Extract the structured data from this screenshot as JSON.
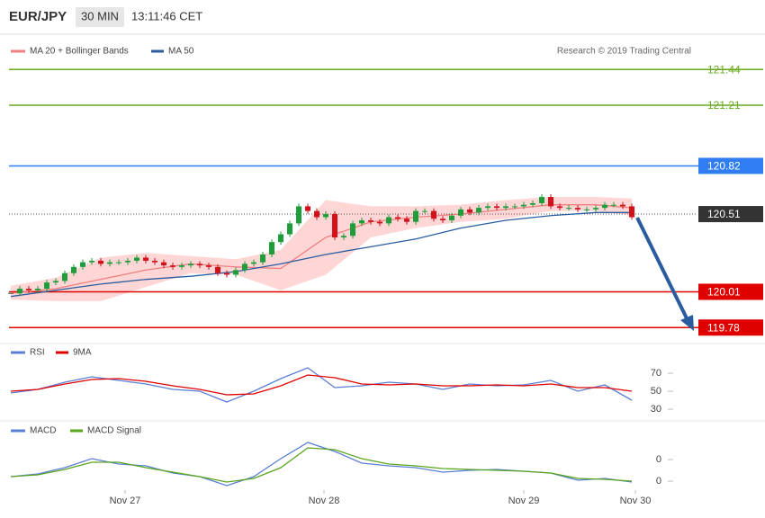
{
  "header": {
    "pair": "EUR/JPY",
    "interval": "30 MIN",
    "time": "13:11:46 CET"
  },
  "credit": "Research © 2019 Trading Central",
  "chart_data": [
    {
      "type": "candlestick",
      "xlim": [
        -0.2,
        76.3
      ],
      "ylim": [
        119.66,
        121.54
      ],
      "up_color": "#1e9e3a",
      "down_color": "#d4101a",
      "close": [
        120.0,
        120.03,
        120.02,
        120.03,
        120.07,
        120.08,
        120.13,
        120.17,
        120.2,
        120.21,
        120.19,
        120.2,
        120.2,
        120.21,
        120.23,
        120.21,
        120.2,
        120.18,
        120.17,
        120.18,
        120.19,
        120.18,
        120.17,
        120.13,
        120.12,
        120.15,
        120.19,
        120.2,
        120.25,
        120.33,
        120.38,
        120.45,
        120.56,
        120.53,
        120.49,
        120.51,
        120.36,
        120.37,
        120.45,
        120.47,
        120.46,
        120.45,
        120.49,
        120.48,
        120.46,
        120.53,
        120.53,
        120.48,
        120.47,
        120.5,
        120.54,
        120.52,
        120.55,
        120.56,
        120.55,
        120.56,
        120.56,
        120.57,
        120.58,
        120.62,
        120.56,
        120.55,
        120.55,
        120.54,
        120.54,
        120.55,
        120.57,
        120.57,
        120.56,
        120.49
      ],
      "series": [
        {
          "name": "MA 20 + Bollinger Bands",
          "color": "#f08080",
          "band_color": "#ffd6d6",
          "x": [
            0,
            5,
            10,
            15,
            20,
            25,
            30,
            35,
            40,
            45,
            50,
            55,
            60,
            65,
            69
          ],
          "values": [
            120.0,
            120.03,
            120.09,
            120.15,
            120.19,
            120.17,
            120.16,
            120.36,
            120.46,
            120.49,
            120.51,
            120.54,
            120.57,
            120.57,
            120.55
          ],
          "upper": [
            120.05,
            120.1,
            120.23,
            120.26,
            120.24,
            120.22,
            120.28,
            120.6,
            120.56,
            120.56,
            120.57,
            120.6,
            120.62,
            120.62,
            120.61
          ],
          "lower": [
            119.96,
            119.95,
            119.95,
            120.04,
            120.13,
            120.12,
            120.02,
            120.12,
            120.36,
            120.42,
            120.46,
            120.48,
            120.53,
            120.53,
            120.5
          ]
        },
        {
          "name": "MA 50",
          "color": "#2a5d9f",
          "x": [
            0,
            5,
            10,
            15,
            20,
            25,
            30,
            35,
            40,
            45,
            50,
            55,
            60,
            65,
            69
          ],
          "values": [
            119.98,
            120.02,
            120.06,
            120.09,
            120.11,
            120.14,
            120.19,
            120.25,
            120.3,
            120.35,
            120.42,
            120.47,
            120.5,
            120.52,
            120.52
          ]
        }
      ],
      "levels": [
        {
          "value": 121.44,
          "color": "#6aa820",
          "style": "plain"
        },
        {
          "value": 121.21,
          "color": "#6aa820",
          "style": "plain"
        },
        {
          "value": 120.82,
          "color": "#2f7df0",
          "style": "box"
        },
        {
          "value": 120.51,
          "color": "#333333",
          "style": "dotted-box"
        },
        {
          "value": 120.01,
          "color": "#e00000",
          "style": "box"
        },
        {
          "value": 119.78,
          "color": "#e00000",
          "style": "box"
        }
      ]
    },
    {
      "type": "line",
      "xlim": [
        -0.2,
        76.3
      ],
      "ylim": [
        15,
        85
      ],
      "yticks": [
        70,
        50,
        30
      ],
      "series": [
        {
          "name": "RSI",
          "color": "#5b7fd6",
          "x": [
            0,
            3,
            6,
            9,
            12,
            15,
            18,
            21,
            24,
            27,
            30,
            33,
            36,
            39,
            42,
            45,
            48,
            51,
            54,
            57,
            60,
            63,
            66,
            69
          ],
          "values": [
            48,
            52,
            60,
            66,
            62,
            58,
            52,
            50,
            38,
            50,
            64,
            76,
            54,
            56,
            60,
            58,
            52,
            58,
            56,
            57,
            62,
            50,
            57,
            40
          ]
        },
        {
          "name": "9MA",
          "color": "#e00000",
          "x": [
            0,
            3,
            6,
            9,
            12,
            15,
            18,
            21,
            24,
            27,
            30,
            33,
            36,
            39,
            42,
            45,
            48,
            51,
            54,
            57,
            60,
            63,
            66,
            69
          ],
          "values": [
            50,
            52,
            58,
            63,
            64,
            61,
            56,
            52,
            46,
            47,
            56,
            68,
            65,
            58,
            57,
            58,
            56,
            56,
            57,
            56,
            58,
            54,
            54,
            50
          ]
        }
      ]
    },
    {
      "type": "line",
      "xlim": [
        -0.2,
        76.3
      ],
      "ylim": [
        -0.35,
        0.6
      ],
      "yticks": [
        0
      ],
      "y2lim": [
        -0.59,
        0.36
      ],
      "y2ticks": [
        0
      ],
      "xticks": [
        {
          "value": 12.7,
          "label": "Nov 27"
        },
        {
          "value": 34.8,
          "label": "Nov 28"
        },
        {
          "value": 57,
          "label": "Nov 29"
        },
        {
          "value": 69.4,
          "label": "Nov 30"
        }
      ],
      "series": [
        {
          "name": "MACD",
          "color": "#5b7fd6",
          "x": [
            0,
            3,
            6,
            9,
            12,
            15,
            18,
            21,
            24,
            27,
            30,
            33,
            36,
            39,
            42,
            45,
            48,
            51,
            54,
            57,
            60,
            63,
            66,
            69
          ],
          "values": [
            0.05,
            0.08,
            0.15,
            0.25,
            0.19,
            0.17,
            0.09,
            0.05,
            -0.05,
            0.05,
            0.25,
            0.43,
            0.33,
            0.2,
            0.17,
            0.15,
            0.1,
            0.12,
            0.13,
            0.11,
            0.09,
            0.01,
            0.03,
            -0.01
          ]
        },
        {
          "name": "MACD Signal",
          "color": "#5aa51e",
          "axis": "y2",
          "x": [
            0,
            3,
            6,
            9,
            12,
            15,
            18,
            21,
            24,
            27,
            30,
            33,
            36,
            39,
            42,
            45,
            48,
            51,
            54,
            57,
            60,
            63,
            66,
            69
          ],
          "values": [
            -0.19,
            -0.17,
            -0.11,
            -0.03,
            -0.03,
            -0.09,
            -0.14,
            -0.19,
            -0.25,
            -0.21,
            -0.09,
            0.13,
            0.11,
            0.01,
            -0.05,
            -0.07,
            -0.1,
            -0.11,
            -0.12,
            -0.13,
            -0.15,
            -0.21,
            -0.22,
            -0.24
          ]
        }
      ]
    }
  ]
}
